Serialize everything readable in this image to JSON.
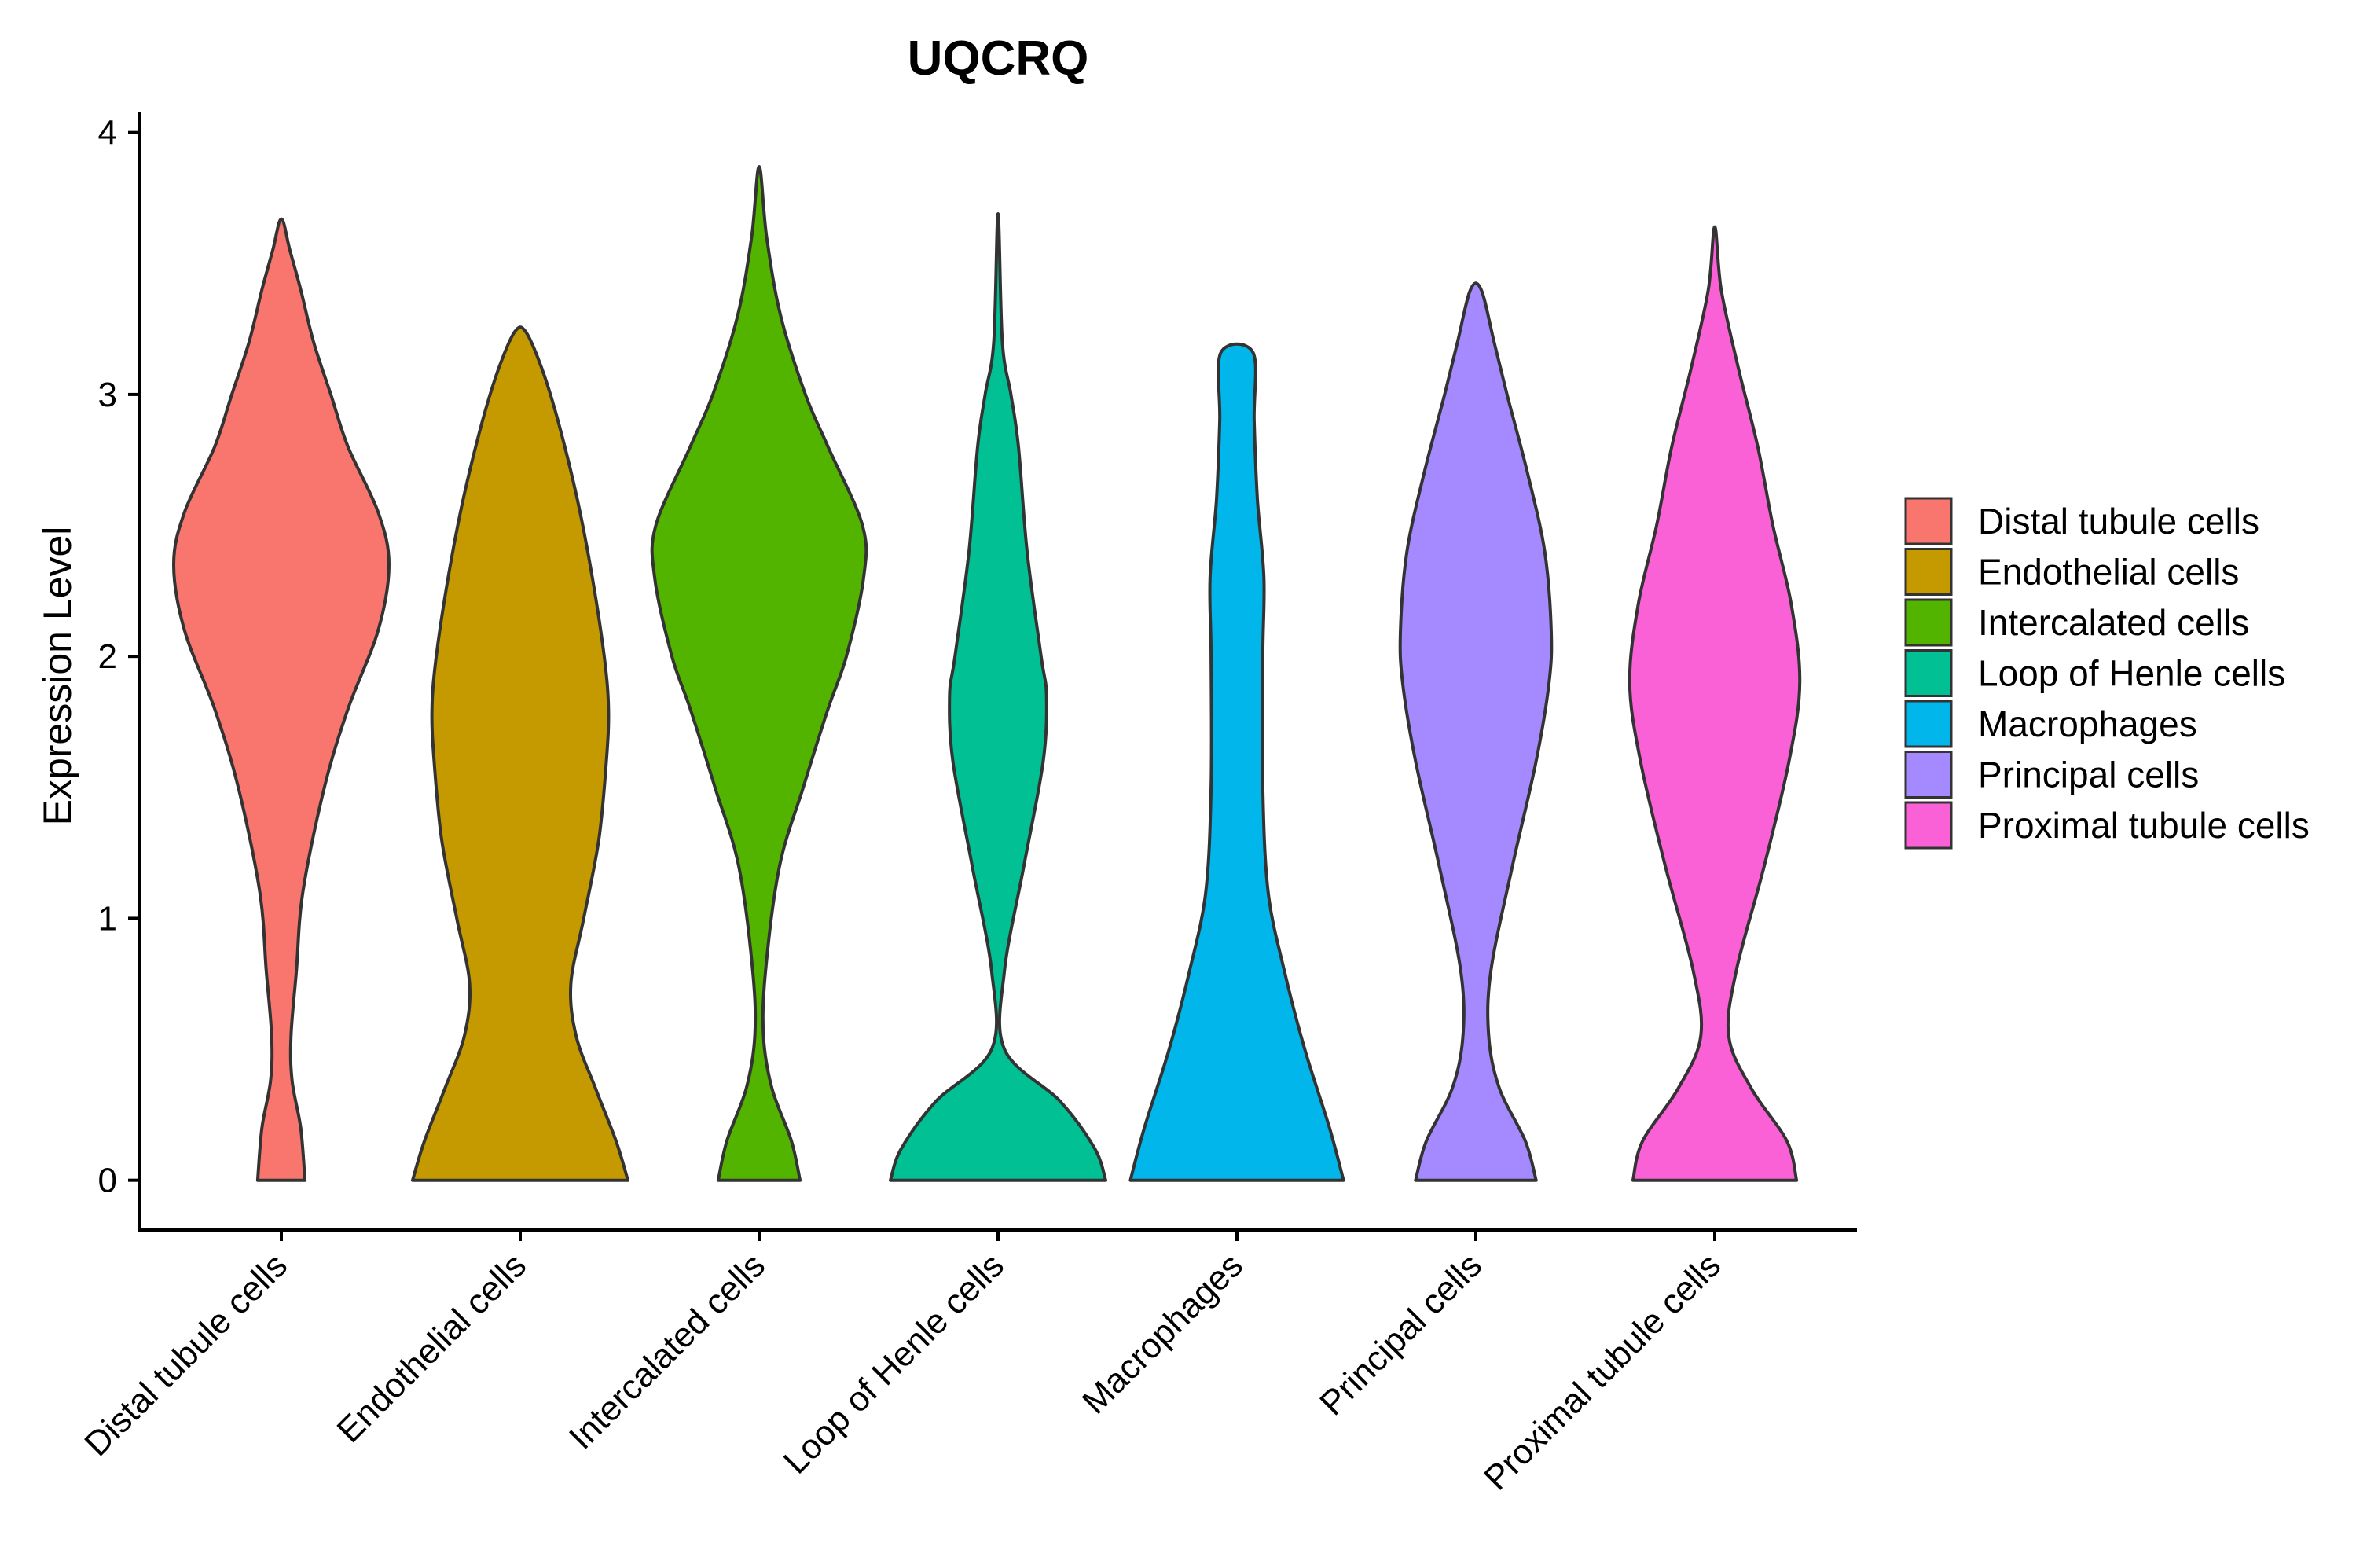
{
  "chart_data": {
    "type": "violin",
    "title": "UQCRQ",
    "xlabel": "",
    "ylabel": "Expression Level",
    "ylim": [
      -0.19,
      4.08
    ],
    "yticks": [
      0,
      1,
      2,
      3,
      4
    ],
    "ytick_labels": [
      "0",
      "1",
      "2",
      "3",
      "4"
    ],
    "grid": false,
    "legend_position": "right",
    "categories": [
      "Distal tubule cells",
      "Endothelial cells",
      "Intercalated cells",
      "Loop of Henle cells",
      "Macrophages",
      "Principal cells",
      "Proximal tubule cells"
    ],
    "colors": [
      "#F8766D",
      "#C49A00",
      "#53B400",
      "#00C094",
      "#00B6EB",
      "#A58AFF",
      "#FB61D7"
    ],
    "series": [
      {
        "name": "Distal tubule cells",
        "max": 3.67,
        "profile": [
          [
            0,
            0.22
          ],
          [
            0.2,
            0.18
          ],
          [
            0.38,
            0.1
          ],
          [
            0.55,
            0.09
          ],
          [
            0.8,
            0.14
          ],
          [
            1.1,
            0.2
          ],
          [
            1.5,
            0.4
          ],
          [
            1.8,
            0.62
          ],
          [
            2.1,
            0.9
          ],
          [
            2.35,
            1.0
          ],
          [
            2.55,
            0.9
          ],
          [
            2.8,
            0.62
          ],
          [
            3.0,
            0.46
          ],
          [
            3.2,
            0.3
          ],
          [
            3.4,
            0.18
          ],
          [
            3.55,
            0.08
          ],
          [
            3.67,
            0.0
          ]
        ]
      },
      {
        "name": "Endothelial cells",
        "max": 3.24,
        "profile": [
          [
            0,
            1.0
          ],
          [
            0.15,
            0.89
          ],
          [
            0.35,
            0.7
          ],
          [
            0.55,
            0.52
          ],
          [
            0.75,
            0.47
          ],
          [
            1.0,
            0.59
          ],
          [
            1.3,
            0.73
          ],
          [
            1.6,
            0.8
          ],
          [
            1.8,
            0.82
          ],
          [
            2.0,
            0.78
          ],
          [
            2.3,
            0.67
          ],
          [
            2.6,
            0.53
          ],
          [
            2.9,
            0.35
          ],
          [
            3.1,
            0.2
          ],
          [
            3.24,
            0.05
          ]
        ]
      },
      {
        "name": "Intercalated cells",
        "max": 3.87,
        "profile": [
          [
            0,
            0.38
          ],
          [
            0.15,
            0.3
          ],
          [
            0.35,
            0.12
          ],
          [
            0.55,
            0.04
          ],
          [
            0.8,
            0.06
          ],
          [
            1.2,
            0.19
          ],
          [
            1.5,
            0.41
          ],
          [
            1.8,
            0.64
          ],
          [
            2.0,
            0.81
          ],
          [
            2.3,
            0.97
          ],
          [
            2.5,
            0.96
          ],
          [
            2.8,
            0.64
          ],
          [
            3.0,
            0.43
          ],
          [
            3.3,
            0.2
          ],
          [
            3.6,
            0.07
          ],
          [
            3.87,
            0.0
          ]
        ]
      },
      {
        "name": "Loop of Henle cells",
        "max": 3.69,
        "profile": [
          [
            0,
            1.0
          ],
          [
            0.12,
            0.9
          ],
          [
            0.3,
            0.58
          ],
          [
            0.5,
            0.06
          ],
          [
            0.8,
            0.06
          ],
          [
            1.2,
            0.24
          ],
          [
            1.6,
            0.42
          ],
          [
            1.85,
            0.45
          ],
          [
            2.0,
            0.4
          ],
          [
            2.4,
            0.27
          ],
          [
            2.8,
            0.19
          ],
          [
            3.0,
            0.12
          ],
          [
            3.2,
            0.04
          ],
          [
            3.69,
            0.0
          ]
        ]
      },
      {
        "name": "Macrophages",
        "max": 3.16,
        "profile": [
          [
            0,
            0.99
          ],
          [
            0.2,
            0.86
          ],
          [
            0.5,
            0.63
          ],
          [
            0.8,
            0.44
          ],
          [
            1.1,
            0.29
          ],
          [
            1.5,
            0.24
          ],
          [
            2.0,
            0.24
          ],
          [
            2.3,
            0.25
          ],
          [
            2.6,
            0.19
          ],
          [
            2.9,
            0.16
          ],
          [
            3.16,
            0.15
          ]
        ]
      },
      {
        "name": "Principal cells",
        "max": 3.4,
        "profile": [
          [
            0,
            0.56
          ],
          [
            0.15,
            0.46
          ],
          [
            0.35,
            0.22
          ],
          [
            0.55,
            0.12
          ],
          [
            0.8,
            0.14
          ],
          [
            1.2,
            0.34
          ],
          [
            1.6,
            0.56
          ],
          [
            1.9,
            0.68
          ],
          [
            2.1,
            0.7
          ],
          [
            2.4,
            0.64
          ],
          [
            2.7,
            0.48
          ],
          [
            3.0,
            0.29
          ],
          [
            3.2,
            0.17
          ],
          [
            3.4,
            0.05
          ]
        ]
      },
      {
        "name": "Proximal tubule cells",
        "max": 3.64,
        "profile": [
          [
            0,
            0.76
          ],
          [
            0.15,
            0.67
          ],
          [
            0.35,
            0.34
          ],
          [
            0.55,
            0.13
          ],
          [
            0.8,
            0.2
          ],
          [
            1.2,
            0.46
          ],
          [
            1.6,
            0.69
          ],
          [
            1.9,
            0.79
          ],
          [
            2.2,
            0.71
          ],
          [
            2.5,
            0.54
          ],
          [
            2.8,
            0.4
          ],
          [
            3.1,
            0.22
          ],
          [
            3.4,
            0.06
          ],
          [
            3.64,
            0.0
          ]
        ]
      }
    ]
  }
}
